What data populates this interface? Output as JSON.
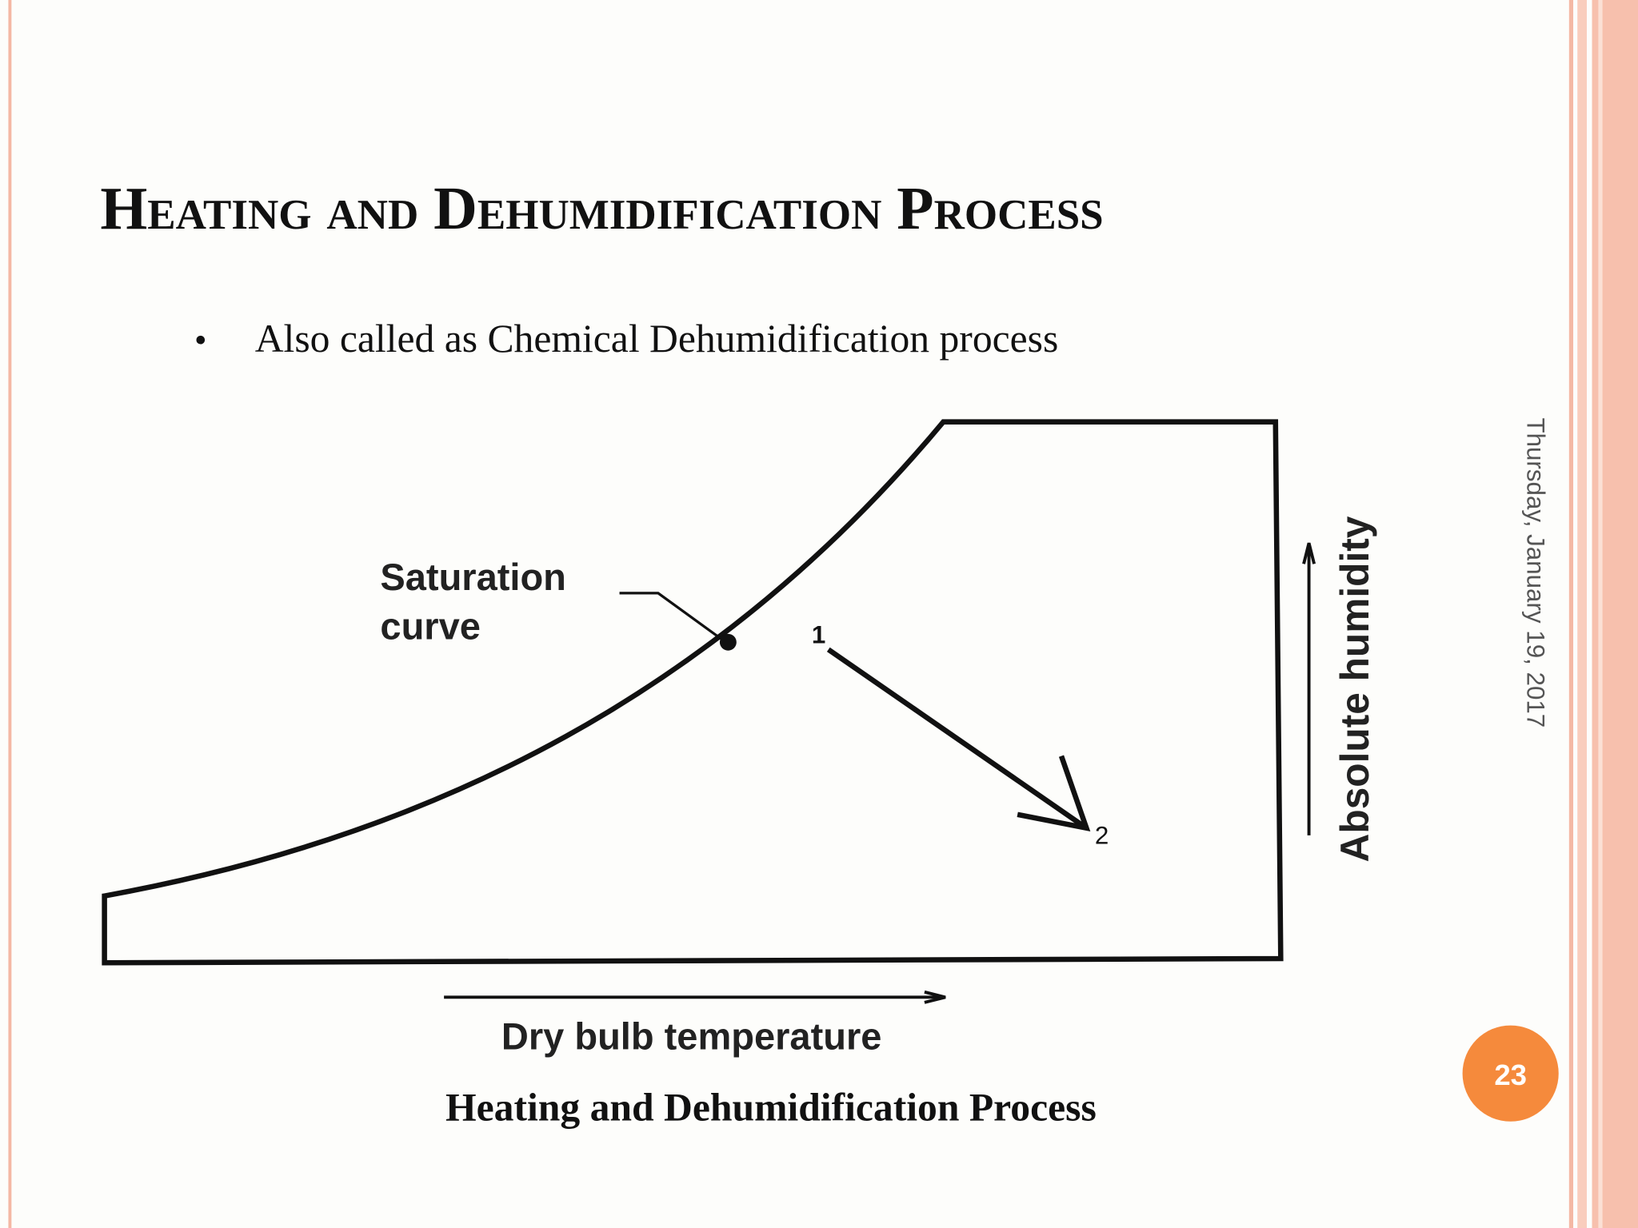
{
  "slide": {
    "title": "Heating and Dehumidification Process",
    "bullets": [
      "Also called as Chemical Dehumidification process"
    ],
    "diagram": {
      "curve_label_line1": "Saturation",
      "curve_label_line2": "curve",
      "point_1": "1",
      "point_2": "2",
      "x_axis_label": "Dry bulb temperature",
      "y_axis_label": "Absolute humidity"
    },
    "caption": "Heating and Dehumidification Process",
    "date": "Thursday, January 19, 2017",
    "slide_number": 23
  }
}
